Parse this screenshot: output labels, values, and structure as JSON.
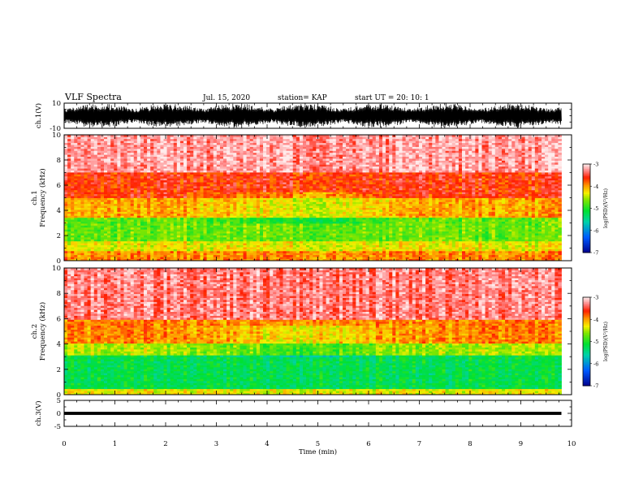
{
  "header": {
    "title": "VLF Spectra",
    "date": "Jul. 15, 2020",
    "station": "station= KAP",
    "start": "start  UT =   20: 10: 1"
  },
  "colors": {
    "spectrogram_low": "#0000a0",
    "spectrogram_mid": "#00e040",
    "spectrogram_yellow": "#f0f000",
    "spectrogram_high": "#ff2000",
    "background": "#ffffff",
    "trace": "#000000"
  },
  "chart_data": [
    {
      "type": "line",
      "panel": "ch1-waveform",
      "ylabel": "ch.1(V)",
      "ylim": [
        -10,
        10
      ],
      "ytick_labels": [
        "10",
        "-10"
      ],
      "xlim": [
        0,
        10
      ],
      "description_of_values": "dense oscillating waveform spanning roughly full scale"
    },
    {
      "type": "heatmap",
      "panel": "ch1-spectrogram",
      "ylabel": "ch.1\nFrequency (kHz)",
      "ylim": [
        0,
        10
      ],
      "ytick_labels": [
        "0",
        "2",
        "4",
        "6",
        "8",
        "10"
      ],
      "xlim": [
        0,
        10
      ],
      "data_end_min": 9.8,
      "colorbar": {
        "label": "log(PSD)(V²/Hz)",
        "range": [
          -7,
          -3
        ],
        "tick_labels": [
          "-3",
          "-4",
          "-5",
          "-6",
          "-7"
        ]
      },
      "band_levels": [
        {
          "f_low": 0.0,
          "f_high": 0.8,
          "level": -3.9
        },
        {
          "f_low": 0.8,
          "f_high": 1.5,
          "level": -4.3
        },
        {
          "f_low": 1.5,
          "f_high": 3.5,
          "level": -4.7
        },
        {
          "f_low": 3.5,
          "f_high": 5.0,
          "level": -4.0
        },
        {
          "f_low": 5.0,
          "f_high": 7.0,
          "level": -3.6
        },
        {
          "f_low": 7.0,
          "f_high": 10.0,
          "level": -3.2
        }
      ]
    },
    {
      "type": "heatmap",
      "panel": "ch2-spectrogram",
      "ylabel": "ch.2\nFrequency (kHz)",
      "ylim": [
        0,
        10
      ],
      "ytick_labels": [
        "0",
        "2",
        "4",
        "6",
        "8",
        "10"
      ],
      "xlim": [
        0,
        10
      ],
      "data_end_min": 9.8,
      "colorbar": {
        "label": "log(PSD)(V²/Hz)",
        "range": [
          -7,
          -3
        ],
        "tick_labels": [
          "-3",
          "-4",
          "-5",
          "-6",
          "-7"
        ]
      },
      "band_levels": [
        {
          "f_low": 0.0,
          "f_high": 0.5,
          "level": -4.3
        },
        {
          "f_low": 0.5,
          "f_high": 3.2,
          "level": -5.2
        },
        {
          "f_low": 3.2,
          "f_high": 4.0,
          "level": -4.5
        },
        {
          "f_low": 4.0,
          "f_high": 6.0,
          "level": -3.9
        },
        {
          "f_low": 6.0,
          "f_high": 10.0,
          "level": -3.3
        }
      ]
    },
    {
      "type": "line",
      "panel": "ch3-waveform",
      "ylabel": "ch.3(V)",
      "ylim": [
        -5,
        5
      ],
      "ytick_labels": [
        "5",
        "0",
        "-5"
      ],
      "xlim": [
        0,
        10
      ],
      "xlabel": "Time (min)",
      "xtick_labels": [
        "0",
        "1",
        "2",
        "3",
        "4",
        "5",
        "6",
        "7",
        "8",
        "9",
        "10"
      ],
      "level_band": [
        -0.6,
        0.6
      ],
      "center_value": 0
    }
  ]
}
